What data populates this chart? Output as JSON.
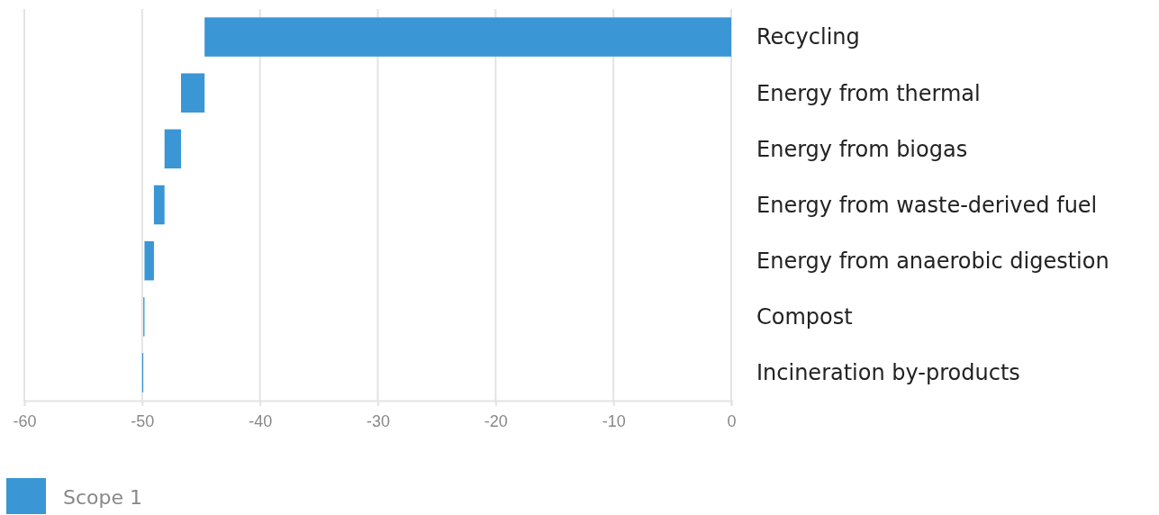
{
  "chart_data": {
    "type": "bar",
    "orientation": "horizontal",
    "categories": [
      "Recycling",
      "Energy from thermal",
      "Energy from biogas",
      "Energy from waste-derived fuel",
      "Energy from anaerobic digestion",
      "Compost",
      "Incineration by-products"
    ],
    "series": [
      {
        "name": "Scope 1",
        "color": "#3a96d4",
        "values": [
          -44.7,
          -2.0,
          -1.4,
          -0.9,
          -0.8,
          -0.1,
          -0.1
        ],
        "base": [
          0,
          -44.7,
          -46.7,
          -48.1,
          -49.0,
          -49.8,
          -49.9
        ]
      }
    ],
    "xlim": [
      -60,
      0
    ],
    "xticks": [
      -60,
      -50,
      -40,
      -30,
      -20,
      -10,
      0
    ],
    "grid": "x",
    "legend": "bottom left"
  }
}
